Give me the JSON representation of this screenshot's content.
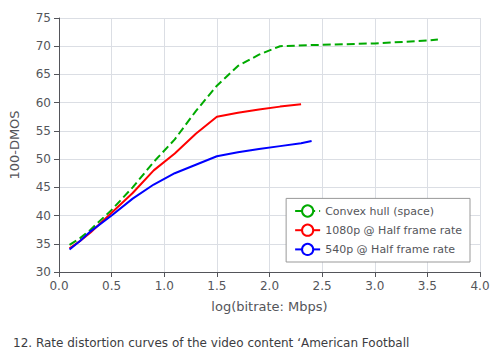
{
  "chart_data": {
    "type": "line",
    "xlabel": "log(bitrate: Mbps)",
    "ylabel": "100-DMOS",
    "caption": "12. Rate distortion curves of the video content ‘American Football",
    "xlim": [
      0,
      4
    ],
    "ylim": [
      30,
      75
    ],
    "xticks": [
      {
        "value": 0,
        "label": "0.0"
      },
      0.5,
      {
        "value": 1,
        "label": "1.0"
      },
      1.5,
      {
        "value": 2,
        "label": "2.0"
      },
      2.5,
      {
        "value": 3,
        "label": "3.0"
      },
      3.5,
      {
        "value": 4,
        "label": "4.0"
      }
    ],
    "yticks": [
      30,
      35,
      40,
      45,
      50,
      55,
      60,
      65,
      70,
      75
    ],
    "grid": true,
    "legend": "lower right",
    "series": [
      {
        "name": "Convex hull (space)",
        "color": "#00aa00",
        "line_style": "dashed",
        "x": [
          0.1,
          0.2,
          0.3,
          0.5,
          0.7,
          0.9,
          1.1,
          1.3,
          1.5,
          1.7,
          1.9,
          2.1,
          2.4,
          3.0,
          3.5,
          3.6
        ],
        "values": [
          34.8,
          36.0,
          37.5,
          41.0,
          45.0,
          49.5,
          53.5,
          58.5,
          63.0,
          66.5,
          68.5,
          70.0,
          70.2,
          70.5,
          71.0,
          71.2
        ]
      },
      {
        "name": "1080p @ Half frame rate",
        "color": "#ff0000",
        "line_style": "solid",
        "x": [
          0.1,
          0.2,
          0.3,
          0.5,
          0.7,
          0.9,
          1.1,
          1.3,
          1.5,
          1.7,
          1.9,
          2.1,
          2.3
        ],
        "values": [
          34.2,
          35.5,
          37.0,
          40.5,
          44.0,
          48.0,
          51.0,
          54.5,
          57.5,
          58.2,
          58.8,
          59.3,
          59.7
        ]
      },
      {
        "name": "540p @ Half frame rate",
        "color": "#0000ff",
        "line_style": "solid",
        "x": [
          0.1,
          0.2,
          0.3,
          0.5,
          0.7,
          0.9,
          1.1,
          1.3,
          1.5,
          1.7,
          1.9,
          2.1,
          2.3,
          2.4
        ],
        "values": [
          34.0,
          35.5,
          37.2,
          40.0,
          43.0,
          45.5,
          47.5,
          49.0,
          50.5,
          51.2,
          51.8,
          52.3,
          52.8,
          53.2
        ]
      }
    ]
  }
}
